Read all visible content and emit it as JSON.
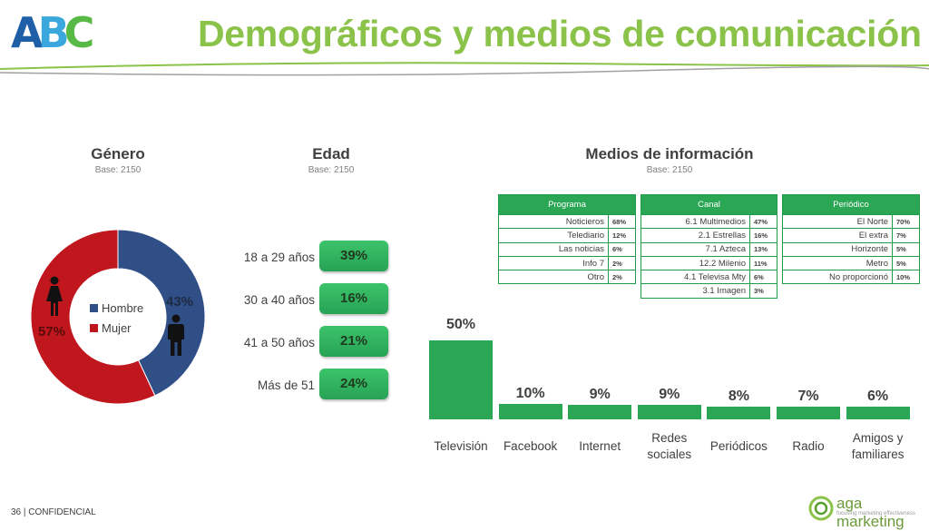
{
  "header": {
    "logo_text": "ABC",
    "title": "Demográficos y medios de comunicación",
    "colors": {
      "title": "#8bc34a",
      "accent_green": "#2aa655",
      "donut_blue": "#2f4f86",
      "donut_red": "#c0161e"
    }
  },
  "genero": {
    "title": "Género",
    "base": "Base: 2150",
    "legend": [
      "Hombre",
      "Mujer"
    ],
    "hombre_pct": "43%",
    "mujer_pct": "57%",
    "icons": [
      "female-icon",
      "male-icon"
    ]
  },
  "edad": {
    "title": "Edad",
    "base": "Base: 2150",
    "rows": [
      {
        "label": "18 a 29 años",
        "value": "39%"
      },
      {
        "label": "30 a 40 años",
        "value": "16%"
      },
      {
        "label": "41 a 50 años",
        "value": "21%"
      },
      {
        "label": "Más de 51",
        "value": "24%"
      }
    ]
  },
  "medios": {
    "title": "Medios de información",
    "base": "Base: 2150",
    "programa": {
      "header": "Programa",
      "rows": [
        {
          "label": "Noticieros",
          "value": "68%"
        },
        {
          "label": "Telediario",
          "value": "12%"
        },
        {
          "label": "Las noticias",
          "value": "6%"
        },
        {
          "label": "Info 7",
          "value": "2%"
        },
        {
          "label": "Otro",
          "value": "2%"
        }
      ]
    },
    "canal": {
      "header": "Canal",
      "rows": [
        {
          "label": "6.1 Multimedios",
          "value": "47%"
        },
        {
          "label": "2.1 Estrellas",
          "value": "16%"
        },
        {
          "label": "7.1 Azteca",
          "value": "13%"
        },
        {
          "label": "12.2 Milenio",
          "value": "11%"
        },
        {
          "label": "4.1 Televisa Mty",
          "value": "6%"
        },
        {
          "label": "3.1 Imagen",
          "value": "3%"
        }
      ]
    },
    "periodico": {
      "header": "Periódico",
      "rows": [
        {
          "label": "El Norte",
          "value": "70%"
        },
        {
          "label": "El extra",
          "value": "7%"
        },
        {
          "label": "Horizonte",
          "value": "5%"
        },
        {
          "label": "Metro",
          "value": "5%"
        },
        {
          "label": "No proporcionó",
          "value": "10%"
        }
      ]
    }
  },
  "footer": {
    "page": "36",
    "text": "| CONFIDENCIAL",
    "brand": "aga marketing",
    "brand_tagline": "focusing marketing effectiveness"
  },
  "chart_data": [
    {
      "type": "pie",
      "title": "Género",
      "categories": [
        "Hombre",
        "Mujer"
      ],
      "values": [
        43,
        57
      ],
      "colors": [
        "#2f4f86",
        "#c0161e"
      ],
      "legend": "center"
    },
    {
      "type": "bar",
      "title": "Edad",
      "categories": [
        "18 a 29 años",
        "30 a 40 años",
        "41 a 50 años",
        "Más de 51"
      ],
      "values": [
        39,
        16,
        21,
        24
      ]
    },
    {
      "type": "bar",
      "title": "Medios de información",
      "categories": [
        "Televisión",
        "Facebook",
        "Internet",
        "Redes sociales",
        "Periódicos",
        "Radio",
        "Amigos y familiares"
      ],
      "values": [
        50,
        10,
        9,
        9,
        8,
        7,
        6
      ],
      "labels": [
        "50%",
        "10%",
        "9%",
        "9%",
        "8%",
        "7%",
        "6%"
      ],
      "ylim": [
        0,
        50
      ],
      "color": "#2aa655"
    }
  ]
}
